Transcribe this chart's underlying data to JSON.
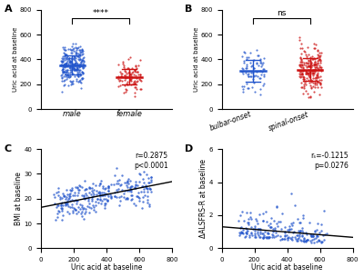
{
  "panel_A": {
    "group1_label": "male",
    "group2_label": "female",
    "group1_color": "#2255cc",
    "group2_color": "#cc1111",
    "group1_mean": 355,
    "group1_sd": 80,
    "group1_n": 280,
    "group1_range": [
      60,
      660
    ],
    "group2_mean": 268,
    "group2_sd": 62,
    "group2_n": 95,
    "group2_range": [
      100,
      420
    ],
    "ylabel": "Uric acid at baseline",
    "ylim": [
      0,
      800
    ],
    "yticks": [
      0,
      200,
      400,
      600,
      800
    ],
    "significance": "****",
    "panel_label": "A"
  },
  "panel_B": {
    "group1_label": "bulbar-onset",
    "group2_label": "spinal-onset",
    "group1_color": "#2255cc",
    "group2_color": "#cc1111",
    "group1_mean": 305,
    "group1_sd": 95,
    "group1_n": 75,
    "group1_range": [
      55,
      530
    ],
    "group2_mean": 308,
    "group2_sd": 88,
    "group2_n": 220,
    "group2_range": [
      95,
      650
    ],
    "ylabel": "Uric acid at baseline",
    "ylim": [
      0,
      800
    ],
    "yticks": [
      0,
      200,
      400,
      600,
      800
    ],
    "significance": "ns",
    "panel_label": "B"
  },
  "panel_C": {
    "xlabel": "Uric acid at baseline",
    "ylabel": "BMI at baseline",
    "xlim": [
      0,
      800
    ],
    "ylim": [
      0,
      40
    ],
    "xticks": [
      0,
      200,
      400,
      600,
      800
    ],
    "yticks": [
      0,
      10,
      20,
      30,
      40
    ],
    "color": "#2255cc",
    "n": 300,
    "x_range": [
      80,
      680
    ],
    "y_mean": 21,
    "y_sd": 3.5,
    "slope": 0.013,
    "intercept": 16.5,
    "r": "0.2875",
    "p": "p<0.0001",
    "panel_label": "C"
  },
  "panel_D": {
    "xlabel": "Uric acid at baseline",
    "ylabel": "ΔALSFRS-R at baseline",
    "xlim": [
      0,
      800
    ],
    "ylim": [
      0,
      6
    ],
    "xticks": [
      0,
      200,
      400,
      600,
      800
    ],
    "yticks": [
      0,
      2,
      4,
      6
    ],
    "color": "#2255cc",
    "n": 220,
    "x_range": [
      100,
      640
    ],
    "slope": -0.0008,
    "intercept": 1.3,
    "rs": "-0.1215",
    "p": "p=0.0276",
    "panel_label": "D"
  }
}
